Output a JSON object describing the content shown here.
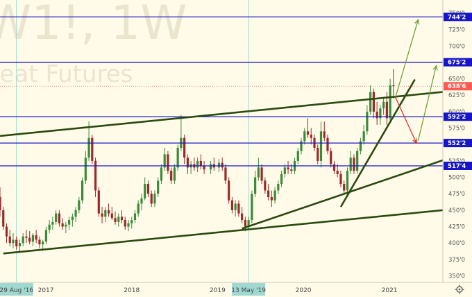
{
  "watermark": {
    "symbol": "W1!, 1W",
    "name": "heat Futures"
  },
  "chart_data": {
    "type": "candlestick",
    "y_axis": {
      "ticks": [
        "750'0",
        "725'0",
        "700'0",
        "675'0",
        "650'0",
        "625'0",
        "600'0",
        "575'0",
        "550'0",
        "525'0",
        "500'0",
        "475'0",
        "450'0",
        "425'0",
        "400'0",
        "375'0",
        "350'0"
      ],
      "range": [
        340,
        770
      ]
    },
    "x_axis": {
      "ticks": [
        "2017",
        "2018",
        "2019",
        "2020",
        "2021"
      ],
      "range": [
        "2016-06-20",
        "2021-08-16"
      ],
      "cursor_dates": [
        "29 Aug '16",
        "13 May '19"
      ]
    },
    "horizontal_levels": [
      {
        "value": 744.25,
        "label": "744'2"
      },
      {
        "value": 675.25,
        "label": "675'2"
      },
      {
        "value": 592.25,
        "label": "592'2"
      },
      {
        "value": 552.25,
        "label": "552'2"
      },
      {
        "value": 517.5,
        "label": "517'4"
      }
    ],
    "last_price": {
      "value": 638.75,
      "label": "638'6"
    },
    "candles": [
      [
        "2016-06-20",
        470,
        485,
        440,
        450
      ],
      [
        "2016-07-04",
        450,
        455,
        420,
        425
      ],
      [
        "2016-07-18",
        425,
        430,
        400,
        410
      ],
      [
        "2016-08-01",
        410,
        420,
        395,
        400
      ],
      [
        "2016-08-15",
        400,
        415,
        392,
        405
      ],
      [
        "2016-08-29",
        405,
        410,
        390,
        395
      ],
      [
        "2016-09-12",
        395,
        405,
        385,
        400
      ],
      [
        "2016-09-26",
        400,
        415,
        395,
        410
      ],
      [
        "2016-10-10",
        410,
        420,
        400,
        408
      ],
      [
        "2016-10-24",
        408,
        418,
        398,
        402
      ],
      [
        "2016-11-07",
        402,
        415,
        395,
        412
      ],
      [
        "2016-11-21",
        412,
        420,
        400,
        405
      ],
      [
        "2016-12-05",
        405,
        410,
        392,
        398
      ],
      [
        "2016-12-19",
        398,
        405,
        388,
        402
      ],
      [
        "2017-01-02",
        402,
        425,
        398,
        420
      ],
      [
        "2017-01-16",
        420,
        435,
        415,
        428
      ],
      [
        "2017-01-30",
        428,
        440,
        420,
        432
      ],
      [
        "2017-02-13",
        432,
        450,
        428,
        445
      ],
      [
        "2017-02-27",
        445,
        450,
        425,
        430
      ],
      [
        "2017-03-13",
        430,
        438,
        420,
        425
      ],
      [
        "2017-03-27",
        425,
        432,
        415,
        428
      ],
      [
        "2017-04-10",
        428,
        440,
        420,
        435
      ],
      [
        "2017-04-24",
        435,
        445,
        425,
        440
      ],
      [
        "2017-05-08",
        440,
        455,
        432,
        450
      ],
      [
        "2017-05-22",
        450,
        470,
        445,
        465
      ],
      [
        "2017-06-05",
        465,
        500,
        460,
        495
      ],
      [
        "2017-06-19",
        495,
        540,
        490,
        530
      ],
      [
        "2017-07-03",
        530,
        585,
        525,
        560
      ],
      [
        "2017-07-17",
        560,
        565,
        520,
        525
      ],
      [
        "2017-07-31",
        525,
        530,
        470,
        480
      ],
      [
        "2017-08-14",
        480,
        485,
        440,
        445
      ],
      [
        "2017-08-28",
        445,
        455,
        430,
        440
      ],
      [
        "2017-09-11",
        440,
        455,
        432,
        450
      ],
      [
        "2017-09-25",
        450,
        460,
        440,
        445
      ],
      [
        "2017-10-09",
        445,
        455,
        435,
        438
      ],
      [
        "2017-10-23",
        438,
        448,
        428,
        432
      ],
      [
        "2017-11-06",
        432,
        445,
        425,
        440
      ],
      [
        "2017-11-20",
        440,
        450,
        430,
        435
      ],
      [
        "2017-12-04",
        435,
        440,
        420,
        425
      ],
      [
        "2017-12-18",
        425,
        435,
        418,
        430
      ],
      [
        "2018-01-01",
        430,
        440,
        422,
        435
      ],
      [
        "2018-01-15",
        435,
        450,
        430,
        445
      ],
      [
        "2018-01-29",
        445,
        465,
        440,
        460
      ],
      [
        "2018-02-12",
        460,
        475,
        450,
        468
      ],
      [
        "2018-02-26",
        468,
        500,
        465,
        490
      ],
      [
        "2018-03-12",
        490,
        495,
        470,
        475
      ],
      [
        "2018-03-26",
        475,
        480,
        455,
        460
      ],
      [
        "2018-04-09",
        460,
        480,
        455,
        475
      ],
      [
        "2018-04-23",
        475,
        500,
        470,
        495
      ],
      [
        "2018-05-07",
        495,
        520,
        490,
        515
      ],
      [
        "2018-05-21",
        515,
        545,
        510,
        535
      ],
      [
        "2018-06-04",
        535,
        540,
        505,
        510
      ],
      [
        "2018-06-18",
        510,
        515,
        490,
        495
      ],
      [
        "2018-07-02",
        495,
        520,
        490,
        515
      ],
      [
        "2018-07-16",
        515,
        550,
        510,
        545
      ],
      [
        "2018-07-30",
        545,
        595,
        540,
        560
      ],
      [
        "2018-08-13",
        560,
        565,
        520,
        530
      ],
      [
        "2018-08-27",
        530,
        535,
        505,
        515
      ],
      [
        "2018-09-10",
        515,
        525,
        505,
        520
      ],
      [
        "2018-09-24",
        520,
        530,
        510,
        515
      ],
      [
        "2018-10-08",
        515,
        530,
        508,
        525
      ],
      [
        "2018-10-22",
        525,
        535,
        512,
        518
      ],
      [
        "2018-11-05",
        518,
        525,
        505,
        512
      ],
      [
        "2018-12-03",
        512,
        525,
        505,
        520
      ],
      [
        "2018-12-17",
        520,
        530,
        510,
        515
      ],
      [
        "2019-01-07",
        515,
        528,
        508,
        522
      ],
      [
        "2019-01-21",
        522,
        530,
        510,
        515
      ],
      [
        "2019-02-04",
        515,
        520,
        490,
        495
      ],
      [
        "2019-02-18",
        495,
        500,
        460,
        465
      ],
      [
        "2019-03-04",
        465,
        470,
        445,
        450
      ],
      [
        "2019-03-18",
        450,
        465,
        440,
        460
      ],
      [
        "2019-04-01",
        460,
        465,
        440,
        445
      ],
      [
        "2019-04-15",
        445,
        455,
        430,
        435
      ],
      [
        "2019-04-29",
        435,
        440,
        418,
        425
      ],
      [
        "2019-05-13",
        425,
        440,
        420,
        435
      ],
      [
        "2019-05-27",
        435,
        480,
        430,
        475
      ],
      [
        "2019-06-10",
        475,
        510,
        470,
        500
      ],
      [
        "2019-06-24",
        500,
        530,
        495,
        515
      ],
      [
        "2019-07-08",
        515,
        520,
        490,
        495
      ],
      [
        "2019-07-22",
        495,
        500,
        475,
        480
      ],
      [
        "2019-08-05",
        480,
        490,
        465,
        470
      ],
      [
        "2019-08-19",
        470,
        480,
        455,
        465
      ],
      [
        "2019-09-02",
        465,
        485,
        460,
        480
      ],
      [
        "2019-09-16",
        480,
        495,
        475,
        490
      ],
      [
        "2019-09-30",
        490,
        510,
        485,
        505
      ],
      [
        "2019-10-14",
        505,
        520,
        500,
        515
      ],
      [
        "2019-10-28",
        515,
        525,
        505,
        512
      ],
      [
        "2019-11-11",
        512,
        520,
        505,
        510
      ],
      [
        "2019-11-25",
        510,
        530,
        505,
        525
      ],
      [
        "2019-12-09",
        525,
        545,
        520,
        540
      ],
      [
        "2019-12-23",
        540,
        560,
        535,
        555
      ],
      [
        "2020-01-06",
        555,
        575,
        550,
        570
      ],
      [
        "2020-01-20",
        570,
        590,
        560,
        565
      ],
      [
        "2020-02-03",
        565,
        575,
        550,
        560
      ],
      [
        "2020-02-17",
        560,
        565,
        540,
        545
      ],
      [
        "2020-03-02",
        545,
        550,
        520,
        525
      ],
      [
        "2020-03-16",
        525,
        585,
        515,
        570
      ],
      [
        "2020-03-30",
        570,
        585,
        555,
        560
      ],
      [
        "2020-04-13",
        560,
        565,
        535,
        540
      ],
      [
        "2020-04-27",
        540,
        545,
        515,
        520
      ],
      [
        "2020-05-11",
        520,
        525,
        505,
        510
      ],
      [
        "2020-05-25",
        510,
        520,
        500,
        505
      ],
      [
        "2020-06-08",
        505,
        510,
        485,
        490
      ],
      [
        "2020-06-22",
        490,
        495,
        475,
        480
      ],
      [
        "2020-07-06",
        480,
        515,
        475,
        510
      ],
      [
        "2020-07-20",
        510,
        540,
        505,
        530
      ],
      [
        "2020-08-03",
        530,
        535,
        505,
        510
      ],
      [
        "2020-08-17",
        510,
        545,
        505,
        540
      ],
      [
        "2020-08-31",
        540,
        560,
        535,
        555
      ],
      [
        "2020-09-14",
        555,
        580,
        550,
        570
      ],
      [
        "2020-09-28",
        570,
        610,
        565,
        600
      ],
      [
        "2020-10-12",
        600,
        640,
        595,
        630
      ],
      [
        "2020-10-26",
        630,
        635,
        590,
        600
      ],
      [
        "2020-11-09",
        600,
        615,
        580,
        590
      ],
      [
        "2020-11-23",
        590,
        610,
        580,
        605
      ],
      [
        "2020-12-07",
        605,
        620,
        595,
        615
      ],
      [
        "2020-12-21",
        615,
        630,
        580,
        590
      ],
      [
        "2021-01-04",
        590,
        650,
        585,
        640
      ],
      [
        "2021-01-18",
        640,
        665,
        620,
        638.75
      ]
    ],
    "trendlines": [
      {
        "from": [
          "2016-06-20",
          563
        ],
        "to": [
          "2021-08-16",
          630
        ],
        "color": "#2a4a10"
      },
      {
        "from": [
          "2016-07-04",
          384
        ],
        "to": [
          "2021-08-16",
          450
        ],
        "color": "#2a4a10"
      },
      {
        "from": [
          "2019-04-15",
          422
        ],
        "to": [
          "2021-08-16",
          526
        ],
        "color": "#2a4a10"
      },
      {
        "from": [
          "2020-06-08",
          455
        ],
        "to": [
          "2021-04-19",
          649
        ],
        "color": "#2a4a10"
      }
    ],
    "arrows": [
      {
        "from": [
          "2021-01-25",
          620
        ],
        "to": [
          "2021-05-03",
          740
        ],
        "color": "#6ea33a"
      },
      {
        "from": [
          "2021-01-25",
          623
        ],
        "to": [
          "2021-04-26",
          552
        ],
        "color": "#d9332b"
      },
      {
        "from": [
          "2021-05-03",
          556
        ],
        "to": [
          "2021-07-19",
          670
        ],
        "color": "#6ea33a"
      }
    ],
    "colors": {
      "up": "#3a8a3a",
      "down": "#9b2929",
      "level": "#1616c8",
      "background": "#fffbe8",
      "last_price_tag": "#ff5a52"
    }
  }
}
